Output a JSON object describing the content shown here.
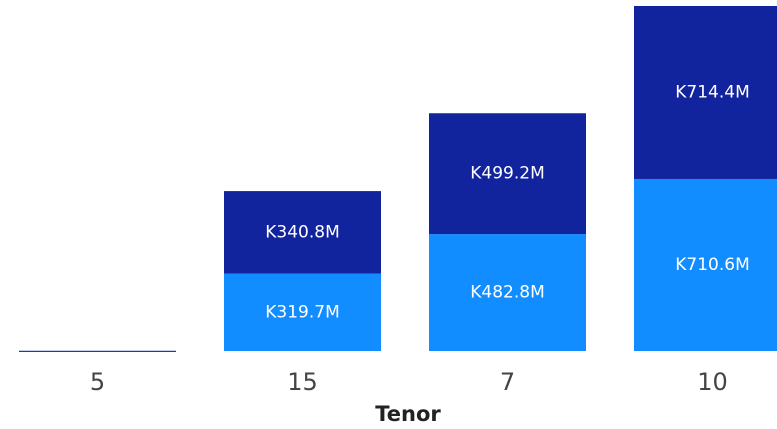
{
  "chart_data": {
    "type": "bar",
    "stacked": true,
    "title": "",
    "xlabel": "Tenor",
    "ylabel": "",
    "categories": [
      "5",
      "15",
      "7",
      "10"
    ],
    "series": [
      {
        "color": "#118DFF",
        "values": [
          0.4,
          319.7,
          482.8,
          710.6
        ],
        "labels": [
          "",
          "K319.7M",
          "K482.8M",
          "K710.6M"
        ]
      },
      {
        "color": "#12239E",
        "values": [
          0.4,
          340.8,
          499.2,
          714.4
        ],
        "labels": [
          "",
          "K340.8M",
          "K499.2M",
          "K714.4M"
        ]
      }
    ],
    "ylim": [
      0,
      1425
    ],
    "grid": false,
    "legend": "none"
  }
}
